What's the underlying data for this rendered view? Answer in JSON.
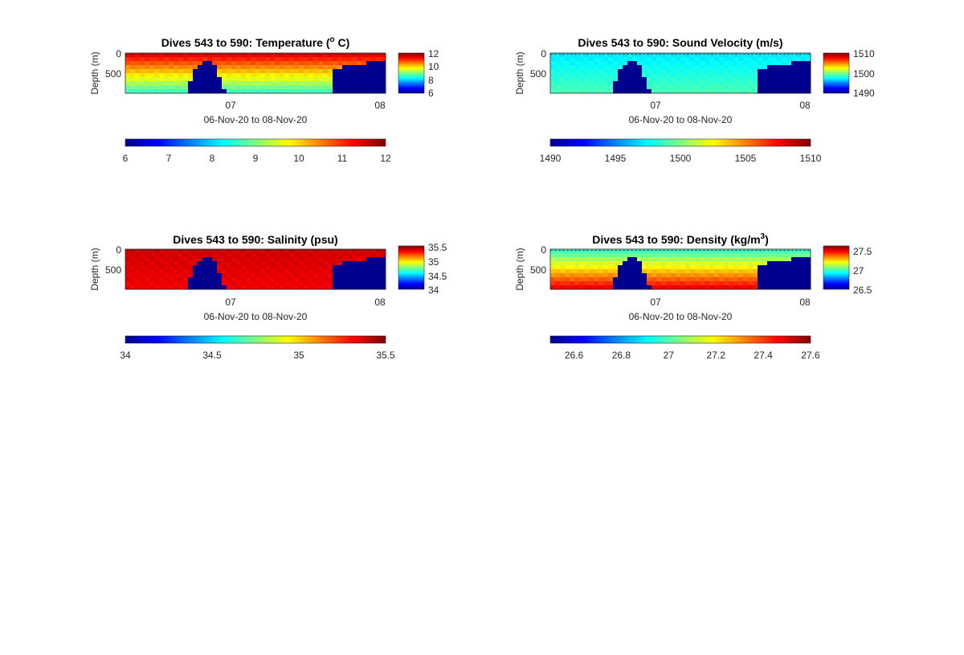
{
  "chart_data": [
    {
      "type": "heatmap",
      "title_parts": {
        "main": "Dives 543 to 590: Temperature (",
        "sup": "o",
        "tail": " C)"
      },
      "xlabel": "06-Nov-20 to 08-Nov-20",
      "ylabel": "Depth (m)",
      "xticks": [
        "07",
        "08"
      ],
      "yticks": [
        "0",
        "500"
      ],
      "clim": [
        6,
        12
      ],
      "side_colorbar_ticks": [
        "12",
        "10",
        "8",
        "6"
      ],
      "bottom_colorbar_ticks": [
        "6",
        "7",
        "8",
        "9",
        "10",
        "11",
        "12"
      ],
      "surface_value": 11.5,
      "deep_value": 8.5,
      "colormap": "jet"
    },
    {
      "type": "heatmap",
      "title_parts": {
        "main": "Dives 543 to 590: Sound Velocity (m/s)",
        "sup": "",
        "tail": ""
      },
      "xlabel": "06-Nov-20 to 08-Nov-20",
      "ylabel": "Depth (m)",
      "xticks": [
        "07",
        "08"
      ],
      "yticks": [
        "0",
        "500"
      ],
      "clim": [
        1490,
        1510
      ],
      "side_colorbar_ticks": [
        "1510",
        "1500",
        "1490"
      ],
      "bottom_colorbar_ticks": [
        "1490",
        "1495",
        "1500",
        "1505",
        "1510"
      ],
      "surface_value": 1497,
      "deep_value": 1499,
      "colormap": "jet"
    },
    {
      "type": "heatmap",
      "title_parts": {
        "main": "Dives 543 to 590: Salinity (psu)",
        "sup": "",
        "tail": ""
      },
      "xlabel": "06-Nov-20 to 08-Nov-20",
      "ylabel": "Depth (m)",
      "xticks": [
        "07",
        "08"
      ],
      "yticks": [
        "0",
        "500"
      ],
      "clim": [
        34,
        35.5
      ],
      "side_colorbar_ticks": [
        "35.5",
        "35",
        "34.5",
        "34"
      ],
      "bottom_colorbar_ticks": [
        "34",
        "34.5",
        "35",
        "35.5"
      ],
      "surface_value": 35.38,
      "deep_value": 35.33,
      "colormap": "jet"
    },
    {
      "type": "heatmap",
      "title_parts": {
        "main": "Dives 543 to 590: Density (kg/m",
        "sup": "3",
        "tail": ")"
      },
      "xlabel": "06-Nov-20 to 08-Nov-20",
      "ylabel": "Depth (m)",
      "xticks": [
        "07",
        "08"
      ],
      "yticks": [
        "0",
        "500"
      ],
      "clim": [
        26.5,
        27.6
      ],
      "side_colorbar_ticks": [
        "27.5",
        "27",
        "26.5"
      ],
      "bottom_colorbar_ticks": [
        "26.6",
        "26.8",
        "27",
        "27.2",
        "27.4",
        "27.6"
      ],
      "surface_value": 26.95,
      "deep_value": 27.5,
      "colormap": "jet"
    }
  ],
  "colors": {
    "no_data": "#00008f",
    "background": "#ffffff"
  }
}
